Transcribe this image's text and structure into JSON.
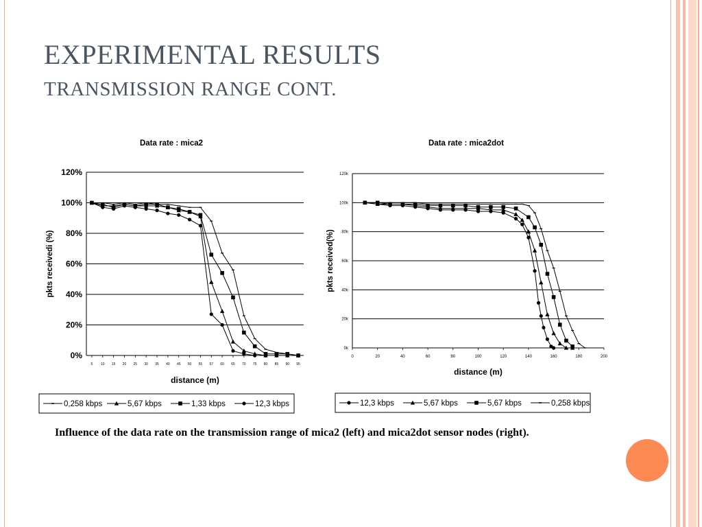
{
  "slide": {
    "title": "EXPERIMENTAL RESULTS",
    "subtitle": "TRANSMISSION RANGE CONT.",
    "caption": "Influence of the data rate on the transmission range of mica2 (left) and mica2dot sensor nodes (right).",
    "accent_color": "#fd8a55",
    "frame_color": "#f4a98a"
  },
  "chart_data": [
    {
      "type": "line",
      "title": "Data rate : mica2",
      "xlabel": "distance (m)",
      "ylabel": "pkts receivedi (%)",
      "x_tick_labels": [
        "5",
        "10",
        "15",
        "20",
        "25",
        "30",
        "35",
        "40",
        "45",
        "50",
        "55",
        "57",
        "60",
        "65",
        "70",
        "75",
        "80",
        "85",
        "90",
        "95"
      ],
      "y_tick_labels": [
        "0%",
        "20%",
        "40%",
        "60%",
        "80%",
        "100%",
        "120%"
      ],
      "ylim": [
        0,
        120
      ],
      "grid": "horizontal",
      "legend_position": "bottom",
      "series": [
        {
          "name": "0,258 kbps",
          "marker": "none",
          "values": [
            100,
            100,
            99,
            100,
            99,
            100,
            99,
            99,
            98,
            97,
            97,
            88,
            67,
            56,
            26,
            11,
            4,
            2,
            1,
            0
          ]
        },
        {
          "name": "5,67 kbps",
          "marker": "triangle",
          "values": [
            100,
            98,
            98,
            99,
            98,
            98,
            98,
            97,
            95,
            94,
            91,
            48,
            29,
            9,
            3,
            1,
            0,
            0,
            0,
            0
          ]
        },
        {
          "name": "1,33 kbps",
          "marker": "square",
          "values": [
            100,
            99,
            97,
            99,
            98,
            99,
            99,
            97,
            96,
            94,
            92,
            66,
            54,
            38,
            15,
            6,
            1,
            1,
            1,
            0
          ]
        },
        {
          "name": "12,3 kbps",
          "marker": "circle",
          "values": [
            100,
            97,
            96,
            98,
            97,
            96,
            95,
            93,
            92,
            89,
            85,
            27,
            20,
            3,
            1,
            0,
            0,
            0,
            0,
            0
          ]
        }
      ]
    },
    {
      "type": "line",
      "title": "Data rate : mica2dot",
      "xlabel": "distance (m)",
      "ylabel": "pkts received(%)",
      "x_tick_labels": [
        "0",
        "20",
        "40",
        "60",
        "80",
        "100",
        "120",
        "140",
        "160",
        "180",
        "200"
      ],
      "y_tick_labels": [
        "0k",
        "20k",
        "40k",
        "60k",
        "80k",
        "100k",
        "120k"
      ],
      "xlim": [
        0,
        200
      ],
      "ylim": [
        0,
        120
      ],
      "grid": "horizontal",
      "legend_position": "bottom",
      "series": [
        {
          "name": "12,3 kbps",
          "marker": "circle",
          "x": [
            10,
            20,
            30,
            40,
            50,
            60,
            70,
            80,
            90,
            100,
            110,
            120,
            130,
            135,
            140,
            145,
            148,
            150,
            152,
            155,
            158,
            160
          ],
          "values": [
            100,
            99,
            98,
            98,
            97,
            96,
            95,
            95,
            95,
            94,
            94,
            93,
            89,
            85,
            76,
            53,
            31,
            22,
            14,
            6,
            1,
            0
          ]
        },
        {
          "name": "5,67 kbps",
          "marker": "triangle",
          "x": [
            10,
            20,
            30,
            40,
            50,
            60,
            70,
            80,
            90,
            100,
            110,
            120,
            130,
            135,
            140,
            145,
            150,
            155,
            160,
            165,
            170,
            175
          ],
          "values": [
            100,
            99,
            99,
            99,
            98,
            97,
            96,
            96,
            96,
            96,
            95,
            95,
            92,
            88,
            80,
            67,
            45,
            23,
            10,
            3,
            0,
            0
          ]
        },
        {
          "name": "5,67 kbps",
          "marker": "square",
          "x": [
            10,
            20,
            30,
            40,
            50,
            60,
            70,
            80,
            90,
            100,
            110,
            120,
            130,
            140,
            145,
            150,
            155,
            160,
            165,
            170,
            175
          ],
          "values": [
            100,
            100,
            99,
            99,
            99,
            98,
            98,
            98,
            98,
            97,
            97,
            97,
            96,
            90,
            83,
            71,
            51,
            35,
            16,
            5,
            1
          ]
        },
        {
          "name": "0,258 kbps",
          "marker": "none",
          "x": [
            10,
            20,
            30,
            40,
            50,
            60,
            70,
            80,
            90,
            100,
            110,
            120,
            130,
            135,
            140,
            145,
            150,
            155,
            160,
            165,
            170,
            175,
            180,
            185
          ],
          "values": [
            100,
            100,
            100,
            100,
            100,
            99,
            99,
            99,
            99,
            99,
            99,
            99,
            99,
            99,
            98,
            93,
            82,
            67,
            55,
            39,
            22,
            12,
            3,
            0
          ]
        }
      ]
    }
  ]
}
